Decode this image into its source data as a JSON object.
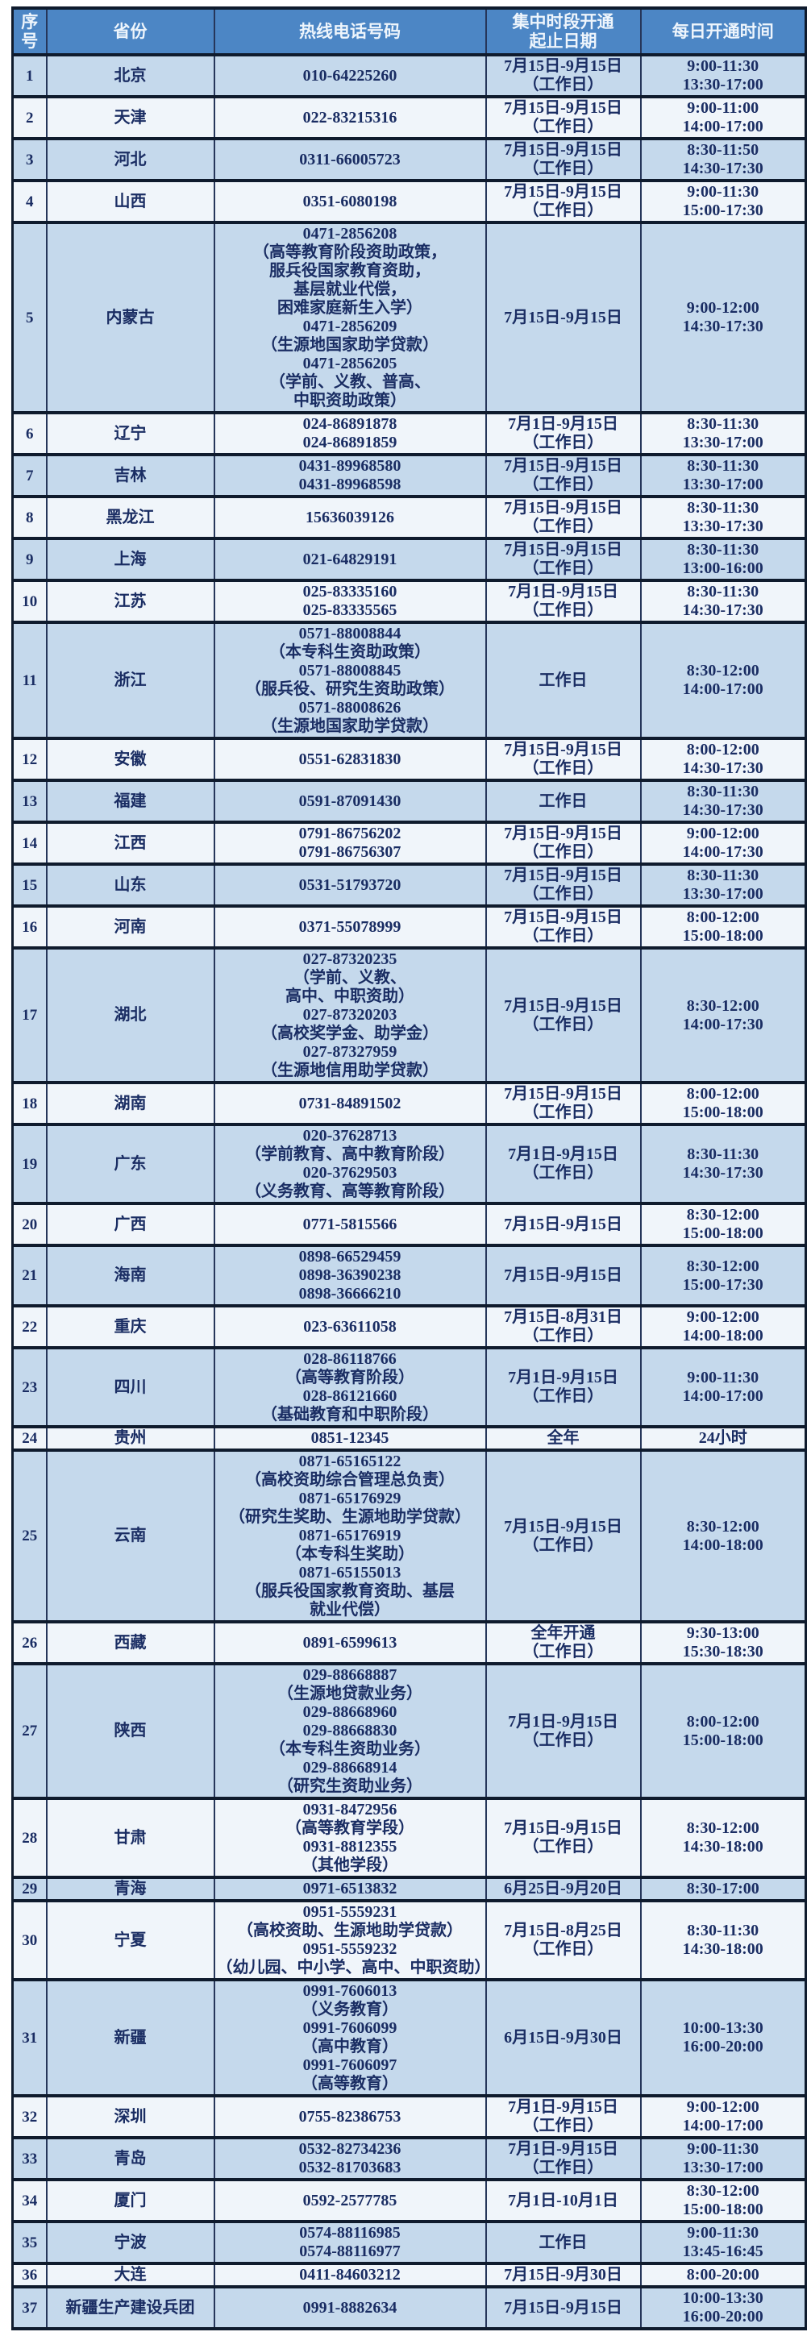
{
  "colors": {
    "header_bg": "#4c86c5",
    "header_text": "#eef5fc",
    "row_blue": "#c5d9ec",
    "row_white": "#f0f5fa",
    "text_navy": "#1a2d63",
    "border_dark": "#0f1b2d"
  },
  "header": {
    "num": "序号",
    "province": "省份",
    "phone": "热线电话号码",
    "date_lines": [
      "集中时段开通",
      "起止日期"
    ],
    "time": "每日开通时间"
  },
  "rows": [
    {
      "num": "1",
      "province": "北京",
      "phone": [
        "010-64225260"
      ],
      "date": [
        "7月15日-9月15日",
        "（工作日）"
      ],
      "time": [
        "9:00-11:30",
        "13:30-17:00"
      ]
    },
    {
      "num": "2",
      "province": "天津",
      "phone": [
        "022-83215316"
      ],
      "date": [
        "7月15日-9月15日",
        "（工作日）"
      ],
      "time": [
        "9:00-11:00",
        "14:00-17:00"
      ]
    },
    {
      "num": "3",
      "province": "河北",
      "phone": [
        "0311-66005723"
      ],
      "date": [
        "7月15日-9月15日",
        "（工作日）"
      ],
      "time": [
        "8:30-11:50",
        "14:30-17:30"
      ]
    },
    {
      "num": "4",
      "province": "山西",
      "phone": [
        "0351-6080198"
      ],
      "date": [
        "7月15日-9月15日",
        "（工作日）"
      ],
      "time": [
        "9:00-11:30",
        "15:00-17:30"
      ]
    },
    {
      "num": "5",
      "province": "内蒙古",
      "phone": [
        "0471-2856208",
        "（高等教育阶段资助政策，",
        "服兵役国家教育资助，",
        "基层就业代偿，",
        "困难家庭新生入学）",
        "0471-2856209",
        "（生源地国家助学贷款）",
        "0471-2856205",
        "（学前、义教、普高、",
        "中职资助政策）"
      ],
      "date": [
        "7月15日-9月15日"
      ],
      "time": [
        "9:00-12:00",
        "14:30-17:30"
      ]
    },
    {
      "num": "6",
      "province": "辽宁",
      "phone": [
        "024-86891878",
        "024-86891859"
      ],
      "date": [
        "7月1日-9月15日",
        "（工作日）"
      ],
      "time": [
        "8:30-11:30",
        "13:30-17:00"
      ]
    },
    {
      "num": "7",
      "province": "吉林",
      "phone": [
        "0431-89968580",
        "0431-89968598"
      ],
      "date": [
        "7月15日-9月15日",
        "（工作日）"
      ],
      "time": [
        "8:30-11:30",
        "13:30-17:00"
      ]
    },
    {
      "num": "8",
      "province": "黑龙江",
      "phone": [
        "15636039126"
      ],
      "date": [
        "7月15日-9月15日",
        "（工作日）"
      ],
      "time": [
        "8:30-11:30",
        "13:30-17:30"
      ]
    },
    {
      "num": "9",
      "province": "上海",
      "phone": [
        "021-64829191"
      ],
      "date": [
        "7月15日-9月15日",
        "（工作日）"
      ],
      "time": [
        "8:30-11:30",
        "13:00-16:00"
      ]
    },
    {
      "num": "10",
      "province": "江苏",
      "phone": [
        "025-83335160",
        "025-83335565"
      ],
      "date": [
        "7月1日-9月15日",
        "（工作日）"
      ],
      "time": [
        "8:30-11:30",
        "14:30-17:30"
      ]
    },
    {
      "num": "11",
      "province": "浙江",
      "phone": [
        "0571-88008844",
        "（本专科生资助政策）",
        "0571-88008845",
        "（服兵役、研究生资助政策）",
        "0571-88008626",
        "（生源地国家助学贷款）"
      ],
      "date": [
        "工作日"
      ],
      "time": [
        "8:30-12:00",
        "14:00-17:00"
      ]
    },
    {
      "num": "12",
      "province": "安徽",
      "phone": [
        "0551-62831830"
      ],
      "date": [
        "7月15日-9月15日",
        "（工作日）"
      ],
      "time": [
        "8:00-12:00",
        "14:30-17:30"
      ]
    },
    {
      "num": "13",
      "province": "福建",
      "phone": [
        "0591-87091430"
      ],
      "date": [
        "工作日"
      ],
      "time": [
        "8:30-11:30",
        "14:30-17:30"
      ]
    },
    {
      "num": "14",
      "province": "江西",
      "phone": [
        "0791-86756202",
        "0791-86756307"
      ],
      "date": [
        "7月15日-9月15日",
        "（工作日）"
      ],
      "time": [
        "9:00-12:00",
        "14:00-17:30"
      ]
    },
    {
      "num": "15",
      "province": "山东",
      "phone": [
        "0531-51793720"
      ],
      "date": [
        "7月15日-9月15日",
        "（工作日）"
      ],
      "time": [
        "8:30-11:30",
        "13:30-17:00"
      ]
    },
    {
      "num": "16",
      "province": "河南",
      "phone": [
        "0371-55078999"
      ],
      "date": [
        "7月15日-9月15日",
        "（工作日）"
      ],
      "time": [
        "8:00-12:00",
        "15:00-18:00"
      ]
    },
    {
      "num": "17",
      "province": "湖北",
      "phone": [
        "027-87320235",
        "（学前、义教、",
        "高中、中职资助）",
        "027-87320203",
        "（高校奖学金、助学金）",
        "027-87327959",
        "（生源地信用助学贷款）"
      ],
      "date": [
        "7月15日-9月15日",
        "（工作日）"
      ],
      "time": [
        "8:30-12:00",
        "14:00-17:30"
      ]
    },
    {
      "num": "18",
      "province": "湖南",
      "phone": [
        "0731-84891502"
      ],
      "date": [
        "7月15日-9月15日",
        "（工作日）"
      ],
      "time": [
        "8:00-12:00",
        "15:00-18:00"
      ]
    },
    {
      "num": "19",
      "province": "广东",
      "phone": [
        "020-37628713",
        "（学前教育、高中教育阶段）",
        "020-37629503",
        "（义务教育、高等教育阶段）"
      ],
      "date": [
        "7月1日-9月15日",
        "（工作日）"
      ],
      "time": [
        "8:30-11:30",
        "14:30-17:30"
      ]
    },
    {
      "num": "20",
      "province": "广西",
      "phone": [
        "0771-5815566"
      ],
      "date": [
        "7月15日-9月15日"
      ],
      "time": [
        "8:30-12:00",
        "15:00-18:00"
      ]
    },
    {
      "num": "21",
      "province": "海南",
      "phone": [
        "0898-66529459",
        "0898-36390238",
        "0898-36666210"
      ],
      "date": [
        "7月15日-9月15日"
      ],
      "time": [
        "8:30-12:00",
        "15:00-17:30"
      ]
    },
    {
      "num": "22",
      "province": "重庆",
      "phone": [
        "023-63611058"
      ],
      "date": [
        "7月15日-8月31日",
        "（工作日）"
      ],
      "time": [
        "9:00-12:00",
        "14:00-18:00"
      ]
    },
    {
      "num": "23",
      "province": "四川",
      "phone": [
        "028-86118766",
        "（高等教育阶段）",
        "028-86121660",
        "（基础教育和中职阶段）"
      ],
      "date": [
        "7月1日-9月15日",
        "（工作日）"
      ],
      "time": [
        "9:00-11:30",
        "14:00-17:00"
      ]
    },
    {
      "num": "24",
      "province": "贵州",
      "phone": [
        "0851-12345"
      ],
      "date": [
        "全年"
      ],
      "time": [
        "24小时"
      ]
    },
    {
      "num": "25",
      "province": "云南",
      "phone": [
        "0871-65165122",
        "（高校资助综合管理总负责）",
        "0871-65176929",
        "（研究生奖助、生源地助学贷款）",
        "0871-65176919",
        "（本专科生奖助）",
        "0871-65155013",
        "（服兵役国家教育资助、基层",
        "就业代偿）"
      ],
      "date": [
        "7月15日-9月15日",
        "（工作日）"
      ],
      "time": [
        "8:30-12:00",
        "14:00-18:00"
      ]
    },
    {
      "num": "26",
      "province": "西藏",
      "phone": [
        "0891-6599613"
      ],
      "date": [
        "全年开通",
        "（工作日）"
      ],
      "time": [
        "9:30-13:00",
        "15:30-18:30"
      ]
    },
    {
      "num": "27",
      "province": "陕西",
      "phone": [
        "029-88668887",
        "（生源地贷款业务）",
        "029-88668960",
        "029-88668830",
        "（本专科生资助业务）",
        "029-88668914",
        "（研究生资助业务）"
      ],
      "date": [
        "7月1日-9月15日",
        "（工作日）"
      ],
      "time": [
        "8:00-12:00",
        "15:00-18:00"
      ]
    },
    {
      "num": "28",
      "province": "甘肃",
      "phone": [
        "0931-8472956",
        "（高等教育学段）",
        "0931-8812355",
        "（其他学段）"
      ],
      "date": [
        "7月15日-9月15日",
        "（工作日）"
      ],
      "time": [
        "8:30-12:00",
        "14:30-18:00"
      ]
    },
    {
      "num": "29",
      "province": "青海",
      "phone": [
        "0971-6513832"
      ],
      "date": [
        "6月25日-9月20日"
      ],
      "time": [
        "8:30-17:00"
      ]
    },
    {
      "num": "30",
      "province": "宁夏",
      "phone": [
        "0951-5559231",
        "（高校资助、生源地助学贷款）",
        "0951-5559232",
        "（幼儿园、中小学、高中、中职资助）"
      ],
      "date": [
        "7月15日-8月25日",
        "（工作日）"
      ],
      "time": [
        "8:30-11:30",
        "14:30-18:00"
      ]
    },
    {
      "num": "31",
      "province": "新疆",
      "phone": [
        "0991-7606013",
        "（义务教育）",
        "0991-7606099",
        "（高中教育）",
        "0991-7606097",
        "（高等教育）"
      ],
      "date": [
        "6月15日-9月30日"
      ],
      "time": [
        "10:00-13:30",
        "16:00-20:00"
      ]
    },
    {
      "num": "32",
      "province": "深圳",
      "phone": [
        "0755-82386753"
      ],
      "date": [
        "7月1日-9月15日",
        "（工作日）"
      ],
      "time": [
        "9:00-12:00",
        "14:00-17:00"
      ]
    },
    {
      "num": "33",
      "province": "青岛",
      "phone": [
        "0532-82734236",
        "0532-81703683"
      ],
      "date": [
        "7月1日-9月15日",
        "（工作日）"
      ],
      "time": [
        "9:00-11:30",
        "13:30-17:00"
      ]
    },
    {
      "num": "34",
      "province": "厦门",
      "phone": [
        "0592-2577785"
      ],
      "date": [
        "7月1日-10月1日"
      ],
      "time": [
        "8:30-12:00",
        "15:00-18:00"
      ]
    },
    {
      "num": "35",
      "province": "宁波",
      "phone": [
        "0574-88116985",
        "0574-88116977"
      ],
      "date": [
        "工作日"
      ],
      "time": [
        "9:00-11:30",
        "13:45-16:45"
      ]
    },
    {
      "num": "36",
      "province": "大连",
      "phone": [
        "0411-84603212"
      ],
      "date": [
        "7月15日-9月30日"
      ],
      "time": [
        "8:00-20:00"
      ]
    },
    {
      "num": "37",
      "province": "新疆生产建设兵团",
      "phone": [
        "0991-8882634"
      ],
      "date": [
        "7月15日-9月15日"
      ],
      "time": [
        "10:00-13:30",
        "16:00-20:00"
      ]
    }
  ]
}
